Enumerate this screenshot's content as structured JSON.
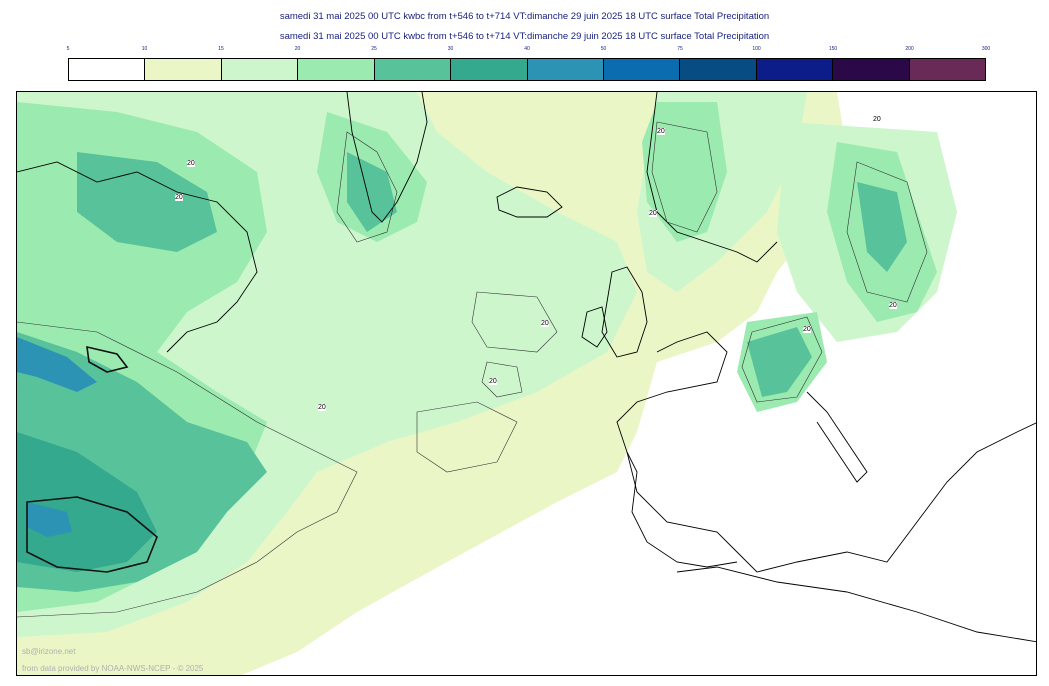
{
  "header": {
    "title_line1": "samedi 31 mai 2025 00 UTC kwbc from t+546 to t+714 VT:dimanche 29 juin 2025 18 UTC surface  Total Precipitation",
    "title_line2": "samedi 31 mai 2025 00 UTC kwbc from t+546 to t+714 VT:dimanche 29 juin 2025 18 UTC surface  Total Precipitation"
  },
  "legend": {
    "ticks": [
      "5",
      "10",
      "15",
      "20",
      "25",
      "30",
      "40",
      "50",
      "75",
      "100",
      "150",
      "200",
      "300"
    ],
    "colors": [
      "#ffffff",
      "#eaf6c6",
      "#cdf6cd",
      "#9beab0",
      "#58c39a",
      "#34a98e",
      "#2c93b4",
      "#0c6cb0",
      "#084c84",
      "#0c1c88",
      "#2b0848",
      "#6a2a58"
    ]
  },
  "map": {
    "contour_labels": [
      "20",
      "20",
      "20",
      "20",
      "20",
      "20",
      "20",
      "20",
      "20",
      "20"
    ],
    "fill_colors": {
      "light": "#eaf6c6",
      "pale": "#cdf6cd",
      "mint": "#9beab0",
      "teal": "#58c39a",
      "teal_dark": "#34a98e",
      "blue": "#2c93b4"
    }
  },
  "footer": {
    "credit1": "sb@irizone.net",
    "credit2": "from data provided by NOAA-NWS-NCEP - © 2025"
  }
}
